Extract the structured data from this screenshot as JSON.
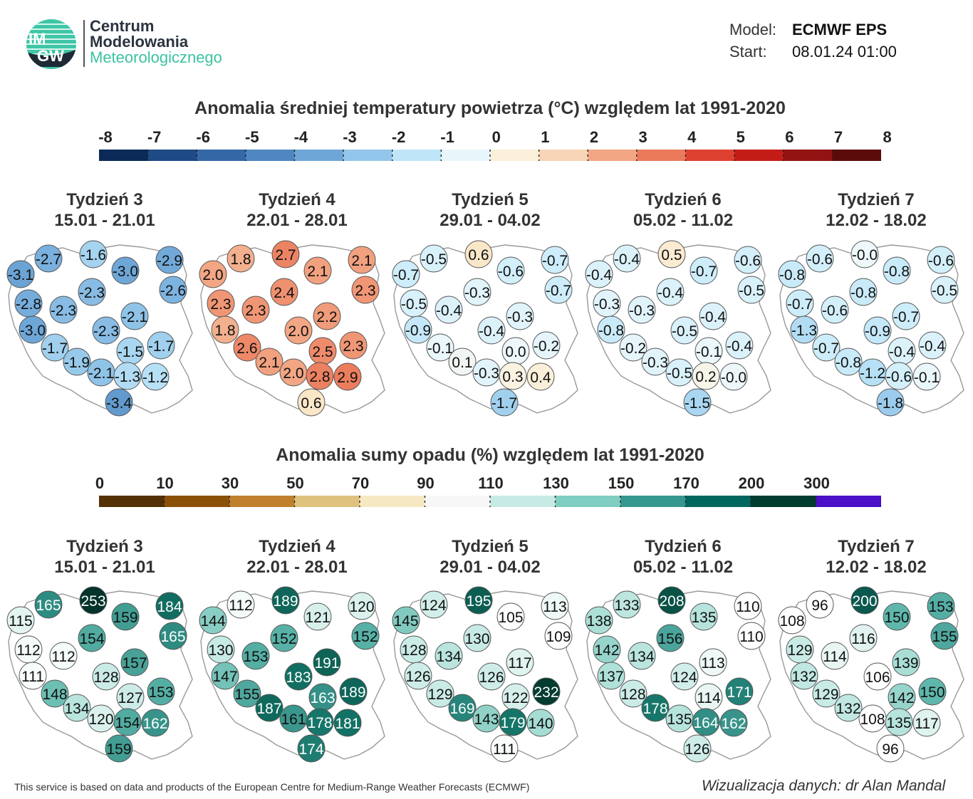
{
  "header": {
    "logo_text": [
      "IM",
      "GW"
    ],
    "org_lines": [
      "Centrum",
      "Modelowania",
      "Meteorologicznego"
    ],
    "model_label": "Model:",
    "model_value": "ECMWF EPS",
    "start_label": "Start:",
    "start_value": "08.01.24 01:00"
  },
  "temperature": {
    "title": "Anomalia średniej temperatury powietrza (°C) względem lat 1991-2020",
    "scale_labels": [
      "-8",
      "-7",
      "-6",
      "-5",
      "-4",
      "-3",
      "-2",
      "-1",
      "0",
      "1",
      "2",
      "3",
      "4",
      "5",
      "6",
      "7",
      "8"
    ],
    "scale_colors": [
      "#0b2a57",
      "#1e4a86",
      "#3568a7",
      "#4f87c1",
      "#6ea6d7",
      "#93c6ea",
      "#bfe6f8",
      "#e8f6fb",
      "#faf0da",
      "#f7d5b6",
      "#f2a684",
      "#ea7a5a",
      "#df4131",
      "#c41d18",
      "#931313",
      "#5c0b0b"
    ],
    "weeks": [
      {
        "label": "Tydzień 3",
        "dates": "15.01 - 21.01",
        "values": [
          "-2.7",
          "-1.6",
          "-2.9",
          "-3.1",
          "-3.0",
          "-2.6",
          "-2.3",
          "-2.8",
          "-2.3",
          "-2.1",
          "-3.0",
          "-2.3",
          "-1.7",
          "-1.5",
          "-1.7",
          "-1.9",
          "-2.1",
          "-1.3",
          "-1.2",
          "-3.4"
        ]
      },
      {
        "label": "Tydzień 4",
        "dates": "22.01 - 28.01",
        "values": [
          "1.8",
          "2.7",
          "2.1",
          "2.0",
          "2.1",
          "2.3",
          "2.4",
          "2.3",
          "2.3",
          "2.2",
          "1.8",
          "2.0",
          "2.6",
          "2.5",
          "2.3",
          "2.1",
          "2.0",
          "2.8",
          "2.9",
          "0.6"
        ]
      },
      {
        "label": "Tydzień 5",
        "dates": "29.01 - 04.02",
        "values": [
          "-0.5",
          "0.6",
          "-0.7",
          "-0.7",
          "-0.6",
          "-0.7",
          "-0.3",
          "-0.5",
          "-0.4",
          "-0.3",
          "-0.9",
          "-0.4",
          "-0.1",
          "0.0",
          "-0.2",
          "0.1",
          "-0.3",
          "0.3",
          "0.4",
          "-1.7"
        ]
      },
      {
        "label": "Tydzień 6",
        "dates": "05.02 - 11.02",
        "values": [
          "-0.4",
          "0.5",
          "-0.6",
          "-0.4",
          "-0.7",
          "-0.5",
          "-0.4",
          "-0.3",
          "-0.3",
          "-0.4",
          "-0.8",
          "-0.5",
          "-0.2",
          "-0.1",
          "-0.4",
          "-0.3",
          "-0.5",
          "0.2",
          "-0.0",
          "-1.5"
        ]
      },
      {
        "label": "Tydzień 7",
        "dates": "12.02 - 18.02",
        "values": [
          "-0.6",
          "-0.0",
          "-0.6",
          "-0.8",
          "-0.8",
          "-0.5",
          "-0.8",
          "-0.7",
          "-0.6",
          "-0.7",
          "-1.3",
          "-0.9",
          "-0.7",
          "-0.4",
          "-0.4",
          "-0.8",
          "-1.2",
          "-0.6",
          "-0.1",
          "-1.8"
        ]
      }
    ]
  },
  "precipitation": {
    "title": "Anomalia sumy opadu (%) względem lat 1991-2020",
    "scale_labels": [
      "0",
      "10",
      "30",
      "50",
      "70",
      "90",
      "110",
      "130",
      "150",
      "170",
      "200",
      "300"
    ],
    "scale_colors": [
      "#543005",
      "#8c5109",
      "#bf812d",
      "#dfc27d",
      "#f6e8c3",
      "#f7f7f7",
      "#c7eae5",
      "#80cdc1",
      "#35978f",
      "#01665e",
      "#003c30",
      "#4b10c8"
    ],
    "weeks": [
      {
        "label": "Tydzień 3",
        "dates": "15.01 - 21.01",
        "values": [
          "165",
          "253",
          "184",
          "115",
          "159",
          "165",
          "154",
          "112",
          "112",
          "157",
          "111",
          "128",
          "148",
          "127",
          "153",
          "134",
          "120",
          "154",
          "162",
          "159"
        ]
      },
      {
        "label": "Tydzień 4",
        "dates": "22.01 - 28.01",
        "values": [
          "112",
          "189",
          "120",
          "144",
          "121",
          "152",
          "152",
          "130",
          "153",
          "191",
          "147",
          "183",
          "155",
          "163",
          "189",
          "187",
          "161",
          "178",
          "181",
          "174"
        ]
      },
      {
        "label": "Tydzień 5",
        "dates": "29.01 - 04.02",
        "values": [
          "124",
          "195",
          "113",
          "145",
          "105",
          "109",
          "130",
          "128",
          "134",
          "117",
          "126",
          "126",
          "129",
          "122",
          "232",
          "169",
          "143",
          "179",
          "140",
          "111"
        ]
      },
      {
        "label": "Tydzień 6",
        "dates": "05.02 - 11.02",
        "values": [
          "133",
          "208",
          "110",
          "138",
          "135",
          "110",
          "156",
          "142",
          "134",
          "113",
          "137",
          "124",
          "128",
          "114",
          "171",
          "178",
          "135",
          "164",
          "162",
          "126"
        ]
      },
      {
        "label": "Tydzień 7",
        "dates": "12.02 - 18.02",
        "values": [
          "96",
          "200",
          "153",
          "108",
          "150",
          "155",
          "116",
          "129",
          "114",
          "139",
          "132",
          "106",
          "129",
          "142",
          "150",
          "132",
          "108",
          "135",
          "117",
          "96"
        ]
      }
    ]
  },
  "footer": {
    "left": "This service is based on data and products of the European Centre for Medium-Range Weather Forecasts (ECMWF)",
    "right": "Wizualizacja danych: dr Alan Mandal"
  }
}
